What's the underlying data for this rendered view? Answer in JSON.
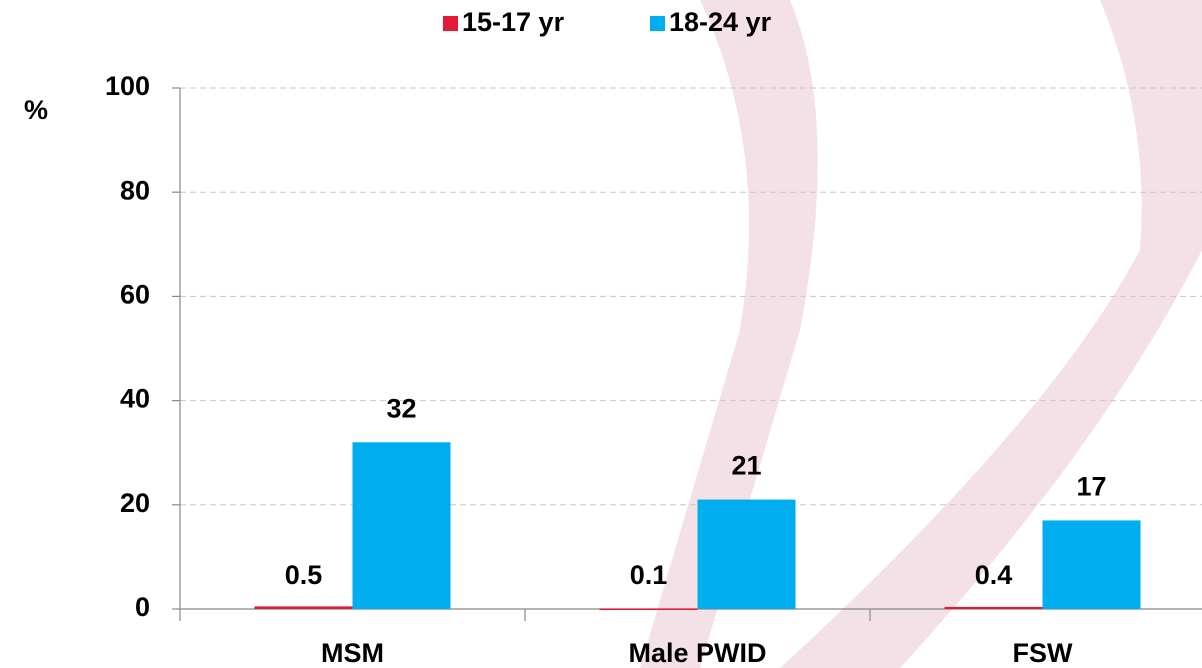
{
  "chart_data": {
    "type": "bar",
    "y_axis_label": "%",
    "categories": [
      "MSM",
      "Male PWID",
      "FSW"
    ],
    "series": [
      {
        "name": "15-17 yr",
        "color": "#e31937",
        "values": [
          0.5,
          0.1,
          0.4
        ]
      },
      {
        "name": "18-24 yr",
        "color": "#00aeef",
        "values": [
          32,
          21,
          17
        ]
      }
    ],
    "ylim": [
      0,
      100
    ],
    "yticks": [
      0,
      20,
      40,
      60,
      80,
      100
    ],
    "grid": true
  }
}
